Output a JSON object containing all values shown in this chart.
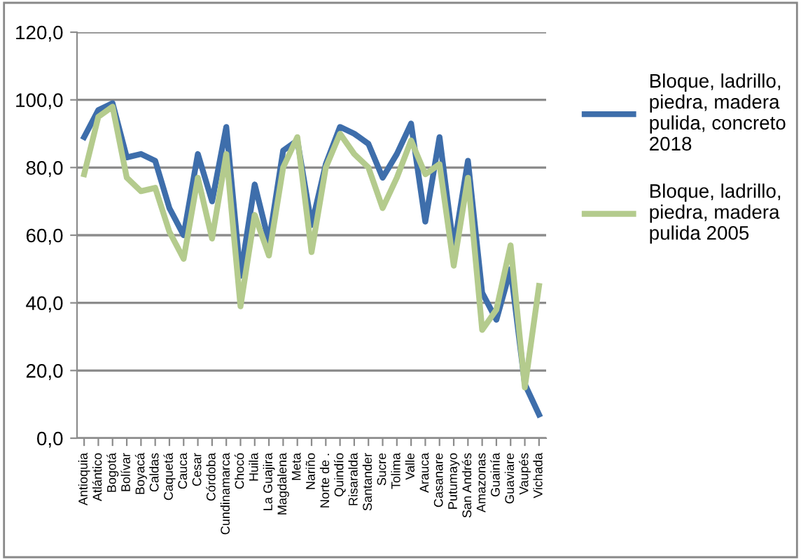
{
  "chart_data": {
    "type": "line",
    "categories": [
      "Antioquia",
      "Atlántico",
      "Bogotá",
      "Bolívar",
      "Boyacá",
      "Caldas",
      "Caquetá",
      "Cauca",
      "Cesar",
      "Córdoba",
      "Cundinamarca",
      "Chocó",
      "Huila",
      "La Guajira",
      "Magdalena",
      "Meta",
      "Nariño",
      "Norte de .",
      "Quindío",
      "Risaralda",
      "Santander",
      "Sucre",
      "Tolima",
      "Valle",
      "Arauca",
      "Casanare",
      "Putumayo",
      "San Andrés",
      "Amazonas",
      "Guainía",
      "Guaviare",
      "Vaupés",
      "Vichada"
    ],
    "series": [
      {
        "name": "Bloque, ladrillo, piedra, madera pulida, concreto 2018",
        "color": "#3e6eab",
        "values": [
          89,
          97,
          99,
          83,
          84,
          82,
          68,
          60,
          84,
          70,
          92,
          48,
          75,
          58,
          85,
          88,
          63,
          81,
          92,
          90,
          87,
          77,
          84,
          93,
          64,
          89,
          56,
          82,
          43,
          35,
          50,
          16,
          7
        ]
      },
      {
        "name": "Bloque, ladrillo, piedra, madera pulida 2005",
        "color": "#b4cb8d",
        "values": [
          78,
          95,
          98,
          77,
          73,
          74,
          61,
          53,
          77,
          59,
          84,
          39,
          66,
          54,
          80,
          89,
          55,
          80,
          90,
          84,
          80,
          68,
          77,
          88,
          78,
          81,
          51,
          77,
          32,
          38,
          57,
          15,
          45
        ]
      }
    ],
    "ylim": [
      0,
      120
    ],
    "yticks": [
      {
        "value": 0,
        "label": "0,0"
      },
      {
        "value": 20,
        "label": "20,0"
      },
      {
        "value": 40,
        "label": "40,0"
      },
      {
        "value": 60,
        "label": "60,0"
      },
      {
        "value": 80,
        "label": "80,0"
      },
      {
        "value": 100,
        "label": "100,0"
      },
      {
        "value": 120,
        "label": "120,0"
      }
    ],
    "grid": "y",
    "legend": "right",
    "marker": "none",
    "line_style": "solid"
  }
}
